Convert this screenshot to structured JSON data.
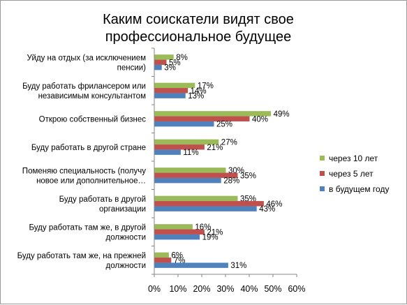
{
  "chart_data": {
    "type": "bar",
    "orientation": "horizontal",
    "title_lines": [
      "Каким соискатели видят свое",
      "профессиональное будущее"
    ],
    "categories": [
      [
        "Уйду на отдых (за исключением",
        "пенсии)"
      ],
      [
        "Буду работать фрилансером или",
        "независимым консультантом"
      ],
      [
        "Открою собственный бизнес"
      ],
      [
        "Буду работать в другой стране"
      ],
      [
        "Поменяю специальность (получу",
        "новое или дополнительное…"
      ],
      [
        "Буду работать в другой",
        "организации"
      ],
      [
        "Буду работать там же, в другой",
        "должности"
      ],
      [
        "Буду работать там же, на прежней",
        "должности"
      ]
    ],
    "series": [
      {
        "name": "через 10 лет",
        "color": "#9BBB59",
        "values": [
          8,
          17,
          49,
          27,
          30,
          35,
          16,
          6
        ]
      },
      {
        "name": "через 5 лет",
        "color": "#C0504D",
        "values": [
          5,
          14,
          40,
          21,
          35,
          46,
          21,
          7
        ]
      },
      {
        "name": "в будущем году",
        "color": "#4F81BD",
        "values": [
          3,
          13,
          25,
          11,
          28,
          43,
          19,
          31
        ]
      }
    ],
    "value_suffix": "%",
    "xlim": [
      0,
      60
    ],
    "xticks": [
      0,
      10,
      20,
      30,
      40,
      50,
      60
    ],
    "xtick_labels": [
      "0%",
      "10%",
      "20%",
      "30%",
      "40%",
      "50%",
      "60%"
    ],
    "grid": false,
    "legend_position": "right"
  }
}
